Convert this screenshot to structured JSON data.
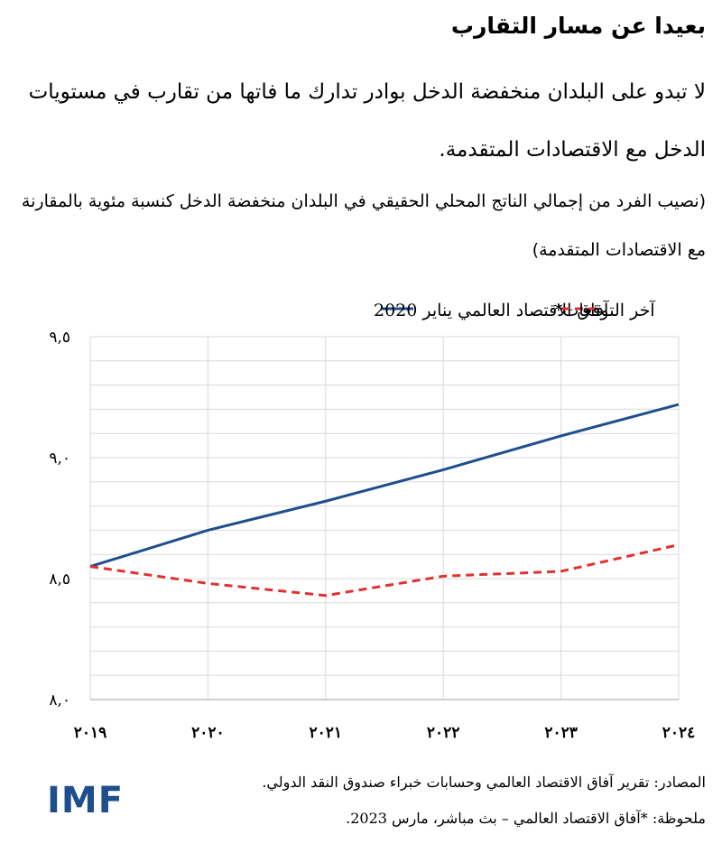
{
  "header": {
    "title": "بعيدا عن مسار التقارب",
    "subtitle": "لا تبدو على البلدان منخفضة الدخل بوادر تدارك ما فاتها من تقارب في مستويات الدخل مع الاقتصادات المتقدمة.",
    "caption": "(نصيب الفرد من إجمالي الناتج المحلي الحقيقي في البلدان منخفضة الدخل كنسبة مئوية بالمقارنة مع الاقتصادات المتقدمة)"
  },
  "footer": {
    "sources": "المصادر: تقرير آفاق الاقتصاد العالمي وحسابات خبراء صندوق النقد الدولي.",
    "note": "ملحوظة: *آفاق الاقتصاد العالمي – بث مباشر، مارس 2023."
  },
  "logo_text": "IMF",
  "colors": {
    "weo_2020": "#1f4e8c",
    "latest": "#e0312f",
    "grid": "#d9d9d9",
    "axis": "#bfbfbf"
  },
  "chart_data": {
    "type": "line",
    "x": [
      2019,
      2020,
      2021,
      2022,
      2023,
      2024
    ],
    "x_tick_labels": [
      "٢٠١٩",
      "٢٠٢٠",
      "٢٠٢١",
      "٢٠٢٢",
      "٢٠٢٣",
      "٢٠٢٤"
    ],
    "ylim": [
      8.0,
      9.5
    ],
    "y_ticks": [
      8.0,
      8.5,
      9.0,
      9.5
    ],
    "y_tick_labels": [
      "٨,٠",
      "٨,٥",
      "٩,٠",
      "٩,٥"
    ],
    "grid": true,
    "legend_position": "top",
    "series": [
      {
        "name": "آفاق الاقتصاد العالمي يناير 2020",
        "style": "solid",
        "color": "#1f4e8c",
        "values": [
          8.55,
          8.7,
          8.82,
          8.95,
          9.09,
          9.22
        ]
      },
      {
        "name": "آخر التوقعات*",
        "style": "dashed",
        "color": "#e0312f",
        "values": [
          8.55,
          8.48,
          8.43,
          8.51,
          8.53,
          8.64
        ]
      }
    ]
  }
}
